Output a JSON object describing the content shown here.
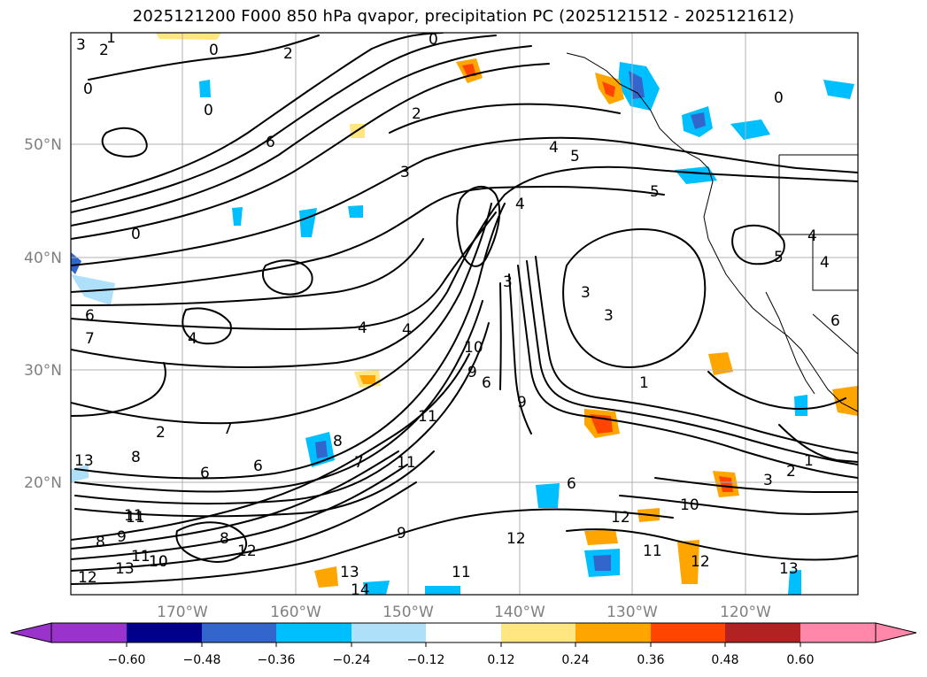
{
  "title": "2025121200 F000 850 hPa qvapor, precipitation PC (2025121512 - 2025121612)",
  "map": {
    "lon_ticks": [
      "170°W",
      "160°W",
      "150°W",
      "140°W",
      "130°W",
      "120°W"
    ],
    "lat_ticks": [
      "50°N",
      "40°N",
      "30°N",
      "20°N"
    ],
    "contour_labels": [
      "3",
      "2",
      "1",
      "0",
      "0",
      "2",
      "0",
      "0",
      "6",
      "0",
      "2",
      "4",
      "5",
      "3",
      "4",
      "5",
      "0",
      "4",
      "5",
      "4",
      "6",
      "4",
      "4",
      "3",
      "3",
      "3",
      "9",
      "10",
      "4",
      "6",
      "9",
      "8",
      "7",
      "6",
      "8",
      "7",
      "6",
      "2",
      "6",
      "9",
      "11",
      "11",
      "8",
      "8",
      "11",
      "12",
      "13",
      "13",
      "14",
      "10",
      "11",
      "12",
      "13",
      "11",
      "10",
      "12",
      "11",
      "12",
      "13",
      "3",
      "2",
      "1",
      "1",
      "9",
      "6",
      "7",
      "12",
      "11",
      "10"
    ]
  },
  "colorbar": {
    "ticks": [
      "−0.60",
      "−0.48",
      "−0.36",
      "−0.24",
      "−0.12",
      "0.12",
      "0.24",
      "0.36",
      "0.48",
      "0.60"
    ],
    "colors": [
      "#9933cc",
      "#00008b",
      "#3366cc",
      "#00bfff",
      "#aee0fa",
      "#ffffff",
      "#ffe680",
      "#ffa500",
      "#ff4500",
      "#b22222",
      "#ff88aa"
    ]
  }
}
